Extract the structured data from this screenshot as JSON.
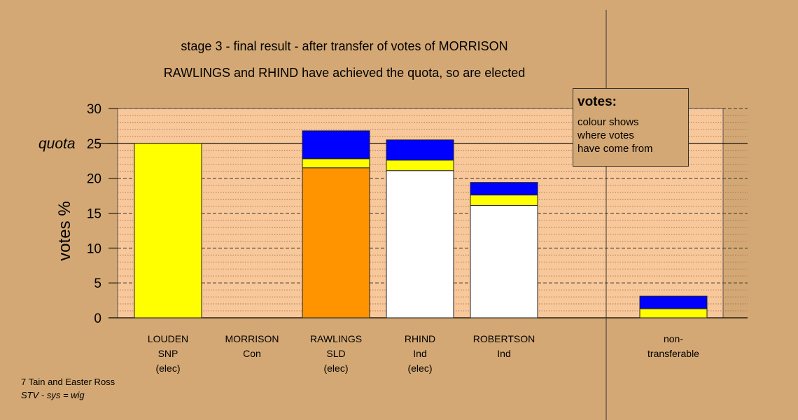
{
  "title_lines": [
    "stage 3 - final result - after transfer of votes of MORRISON",
    "RAWLINGS and RHIND have achieved the quota, so are elected"
  ],
  "quota_label": "quota",
  "legend": {
    "title": "votes:",
    "lines": [
      "colour shows",
      "where votes",
      "have come from"
    ]
  },
  "footer": {
    "line1": "7 Tain and Easter Ross",
    "line2": "STV - sys = wig"
  },
  "colors": {
    "background": "#d4a874",
    "plot_bg": "#f8c89a",
    "snp": "#ffff00",
    "con": "#0000ff",
    "sld": "#ff9400",
    "ind": "#ffffff"
  },
  "chart_data": {
    "type": "bar",
    "stacked": true,
    "ylabel": "votes %",
    "ylim": [
      0,
      30
    ],
    "yticks": [
      0,
      5,
      10,
      15,
      20,
      25,
      30
    ],
    "quota": 25,
    "grid": true,
    "categories": [
      [
        "LOUDEN",
        "SNP",
        "(elec)"
      ],
      [
        "MORRISON",
        "Con"
      ],
      [
        "RAWLINGS",
        "SLD",
        "(elec)"
      ],
      [
        "RHIND",
        "Ind",
        "(elec)"
      ],
      [
        "ROBERTSON",
        "Ind"
      ],
      [
        "non-",
        "transferable"
      ]
    ],
    "series": [
      {
        "color": "#ffff00",
        "values": [
          25.0,
          0,
          0,
          0,
          0,
          0
        ]
      },
      {
        "color": "#ff9400",
        "values": [
          0,
          0,
          21.5,
          0,
          0,
          0
        ]
      },
      {
        "color": "#ffffff",
        "values": [
          0,
          0,
          0,
          21.1,
          16.1,
          0
        ]
      },
      {
        "color": "#ffff00",
        "values": [
          0,
          0,
          1.3,
          1.5,
          1.5,
          1.3
        ]
      },
      {
        "color": "#0000ff",
        "values": [
          0,
          0,
          4.0,
          2.9,
          1.8,
          1.8
        ]
      }
    ]
  }
}
